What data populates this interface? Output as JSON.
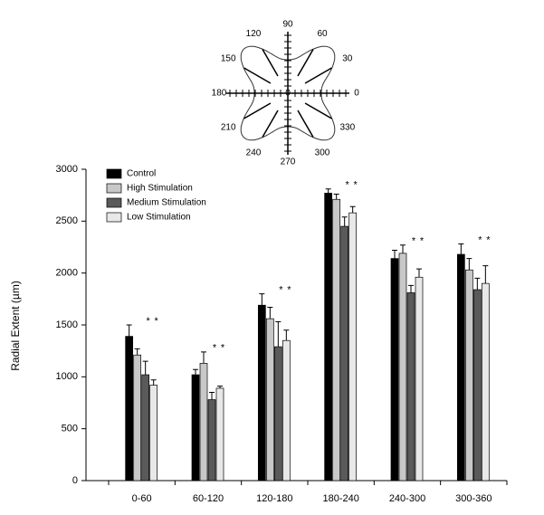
{
  "diagram": {
    "angles": [
      0,
      30,
      60,
      90,
      120,
      150,
      180,
      210,
      240,
      270,
      300,
      330
    ],
    "center_label": "0"
  },
  "chart_data": {
    "type": "bar",
    "y_label": "Radial Extent (µm)",
    "categories": [
      "0-60",
      "60-120",
      "120-180",
      "180-240",
      "240-300",
      "300-360"
    ],
    "series": [
      {
        "name": "Control",
        "color": "#000000",
        "values": [
          1390,
          1020,
          1690,
          2770,
          2140,
          2180
        ],
        "errors": [
          110,
          50,
          110,
          40,
          80,
          100
        ]
      },
      {
        "name": "High Stimulation",
        "color": "#c8c8c8",
        "values": [
          1210,
          1130,
          1560,
          2710,
          2190,
          2030
        ],
        "errors": [
          60,
          110,
          110,
          50,
          80,
          110
        ]
      },
      {
        "name": "Medium Stimulation",
        "color": "#5a5a5a",
        "values": [
          1020,
          780,
          1290,
          2450,
          1810,
          1840
        ],
        "errors": [
          130,
          70,
          240,
          90,
          70,
          110
        ],
        "significant": true
      },
      {
        "name": "Low Stimulation",
        "color": "#e8e8e8",
        "values": [
          920,
          890,
          1350,
          2580,
          1960,
          1900
        ],
        "errors": [
          50,
          20,
          100,
          60,
          80,
          170
        ],
        "significant": true
      }
    ],
    "significance_label": "*",
    "ylim": [
      0,
      3000
    ],
    "yticks": [
      0,
      500,
      1000,
      1500,
      2000,
      2500,
      3000
    ],
    "legend": "top-left"
  }
}
